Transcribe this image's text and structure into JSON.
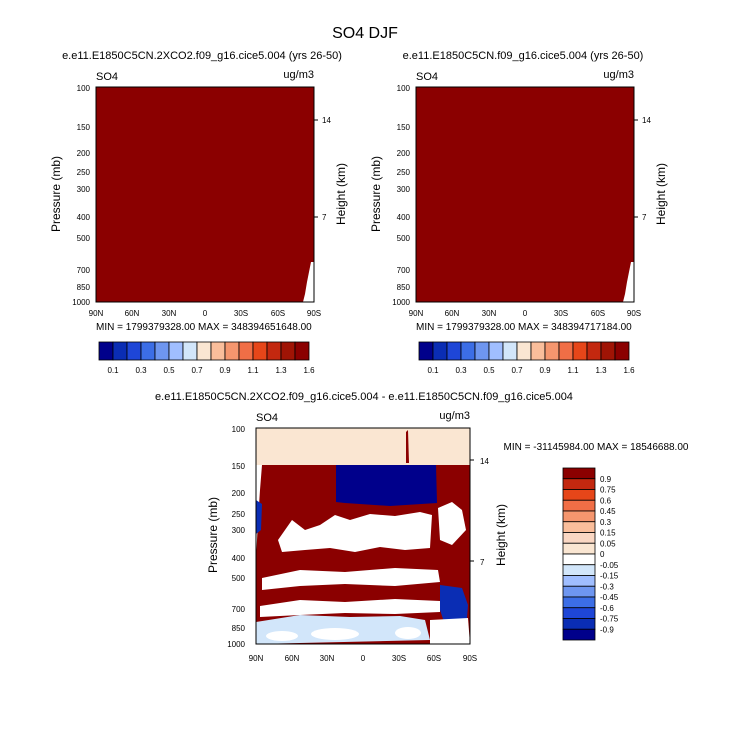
{
  "page_title": "SO4 DJF",
  "chart_data": [
    {
      "type": "heatmap",
      "title": "e.e11.E1850C5CN.2XCO2.f09_g16.cice5.004 (yrs 26-50)",
      "left_label": "SO4",
      "right_label": "ug/m3",
      "xlabel": "",
      "ylabel": "Pressure (mb)",
      "ylabel_right": "Height (km)",
      "x_ticks": [
        "90N",
        "60N",
        "30N",
        "0",
        "30S",
        "60S",
        "90S"
      ],
      "y_ticks": [
        "100",
        "150",
        "200",
        "250",
        "300",
        "400",
        "500",
        "700",
        "850",
        "1000"
      ],
      "y_right_ticks": [
        "14",
        "7"
      ],
      "stats": "MIN = 1799379328.00  MAX = 348394651648.00",
      "fill_color": "#8b0000",
      "colorbar": {
        "labels": [
          "0.1",
          "0.3",
          "0.5",
          "0.7",
          "0.9",
          "1.1",
          "1.3",
          "1.6"
        ],
        "colors": [
          "#00008b",
          "#0a2db4",
          "#1e46d7",
          "#3c6ee6",
          "#6e96f0",
          "#a0beff",
          "#d2e6fa",
          "#fae6d2",
          "#fabe9b",
          "#f5966e",
          "#f06e46",
          "#e64619",
          "#c3280f",
          "#a01405",
          "#8b0000"
        ]
      }
    },
    {
      "type": "heatmap",
      "title": "e.e11.E1850C5CN.f09_g16.cice5.004 (yrs 26-50)",
      "left_label": "SO4",
      "right_label": "ug/m3",
      "xlabel": "",
      "ylabel": "Pressure (mb)",
      "ylabel_right": "Height (km)",
      "x_ticks": [
        "90N",
        "60N",
        "30N",
        "0",
        "30S",
        "60S",
        "90S"
      ],
      "y_ticks": [
        "100",
        "150",
        "200",
        "250",
        "300",
        "400",
        "500",
        "700",
        "850",
        "1000"
      ],
      "y_right_ticks": [
        "14",
        "7"
      ],
      "stats": "MIN = 1799379328.00  MAX = 348394717184.00",
      "fill_color": "#8b0000",
      "colorbar": {
        "labels": [
          "0.1",
          "0.3",
          "0.5",
          "0.7",
          "0.9",
          "1.1",
          "1.3",
          "1.6"
        ],
        "colors": [
          "#00008b",
          "#0a2db4",
          "#1e46d7",
          "#3c6ee6",
          "#6e96f0",
          "#a0beff",
          "#d2e6fa",
          "#fae6d2",
          "#fabe9b",
          "#f5966e",
          "#f06e46",
          "#e64619",
          "#c3280f",
          "#a01405",
          "#8b0000"
        ]
      }
    },
    {
      "type": "heatmap",
      "title": "e.e11.E1850C5CN.2XCO2.f09_g16.cice5.004 - e.e11.E1850C5CN.f09_g16.cice5.004",
      "left_label": "SO4",
      "right_label": "ug/m3",
      "xlabel": "",
      "ylabel": "Pressure (mb)",
      "ylabel_right": "Height (km)",
      "x_ticks": [
        "90N",
        "60N",
        "30N",
        "0",
        "30S",
        "60S",
        "90S"
      ],
      "y_ticks": [
        "100",
        "150",
        "200",
        "250",
        "300",
        "400",
        "500",
        "700",
        "850",
        "1000"
      ],
      "y_right_ticks": [
        "14",
        "7"
      ],
      "stats": "MIN = -31145984.00  MAX = 18546688.00",
      "colorbar": {
        "labels": [
          "0.9",
          "0.75",
          "0.6",
          "0.45",
          "0.3",
          "0.15",
          "0.05",
          "0",
          "-0.05",
          "-0.15",
          "-0.3",
          "-0.45",
          "-0.6",
          "-0.75",
          "-0.9"
        ],
        "colors": [
          "#8b0000",
          "#c3280f",
          "#e64619",
          "#f06e46",
          "#f5966e",
          "#fabe9b",
          "#fad7c3",
          "#fae6d2",
          "#ffffff",
          "#d2e6fa",
          "#a0beff",
          "#6e96f0",
          "#3c6ee6",
          "#1e46d7",
          "#0a2db4",
          "#00008b"
        ]
      }
    }
  ]
}
